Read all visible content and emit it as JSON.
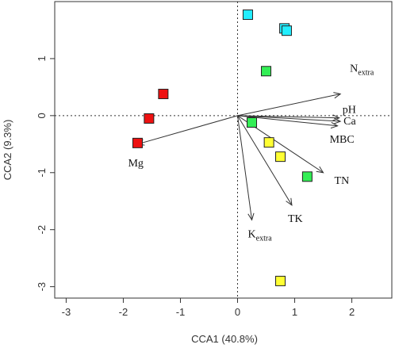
{
  "chart_data": {
    "type": "scatter",
    "title": "",
    "xlabel": "CCA1 (40.8%)",
    "ylabel": "CCA2 (9.3%)",
    "xlim": [
      -3.2,
      2.7
    ],
    "ylim": [
      -3.2,
      2.0
    ],
    "xticks": [
      "-3",
      "-2",
      "-1",
      "0",
      "1",
      "2"
    ],
    "yticks": [
      "-3",
      "-2",
      "-1",
      "0",
      "1"
    ],
    "grid": false,
    "reference_lines": "dotted lines at x = 0 and y = 0",
    "series": [
      {
        "color": "#ee1111",
        "points": [
          [
            -1.75,
            -0.48
          ],
          [
            -1.55,
            -0.05
          ],
          [
            -1.3,
            0.38
          ]
        ]
      },
      {
        "color": "#33ee55",
        "points": [
          [
            0.5,
            0.78
          ],
          [
            0.25,
            -0.12
          ],
          [
            1.22,
            -1.07
          ]
        ]
      },
      {
        "color": "#ffff33",
        "points": [
          [
            0.55,
            -0.47
          ],
          [
            0.75,
            -0.72
          ],
          [
            0.75,
            -2.9
          ]
        ]
      },
      {
        "color": "#22eeff",
        "points": [
          [
            0.18,
            1.77
          ],
          [
            0.82,
            1.53
          ],
          [
            0.86,
            1.49
          ]
        ]
      }
    ],
    "vectors": [
      {
        "label": "N",
        "subscript": "extra",
        "x": 1.8,
        "y": 0.38
      },
      {
        "label": "pH",
        "subscript": "",
        "x": 1.78,
        "y": -0.04
      },
      {
        "label": "Ca",
        "subscript": "",
        "x": 1.8,
        "y": -0.1
      },
      {
        "label": "MBC",
        "subscript": "",
        "x": 1.75,
        "y": -0.18
      },
      {
        "label": "TN",
        "subscript": "",
        "x": 1.5,
        "y": -1.0
      },
      {
        "label": "TK",
        "subscript": "",
        "x": 0.95,
        "y": -1.57
      },
      {
        "label": "K",
        "subscript": "extra",
        "x": 0.25,
        "y": -1.83
      },
      {
        "label": "Mg",
        "subscript": "",
        "x": -1.75,
        "y": -0.5
      }
    ]
  }
}
